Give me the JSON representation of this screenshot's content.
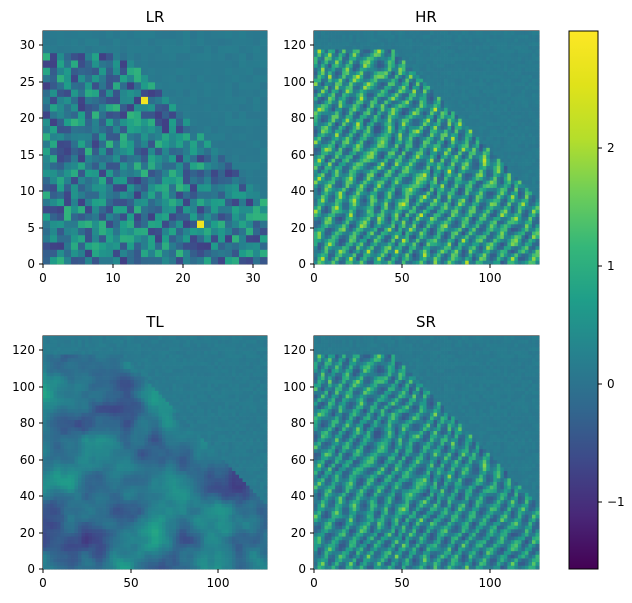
{
  "figure": {
    "panel_titles": [
      "LR",
      "HR",
      "TL",
      "SR"
    ],
    "panel_axes": {
      "LR": {
        "x_ticks": [
          "0",
          "10",
          "20",
          "30"
        ],
        "y_ticks": [
          "0",
          "5",
          "10",
          "15",
          "20",
          "25",
          "30"
        ]
      },
      "HR": {
        "x_ticks": [
          "0",
          "50",
          "100"
        ],
        "y_ticks": [
          "0",
          "20",
          "40",
          "60",
          "80",
          "100",
          "120"
        ]
      },
      "TL": {
        "x_ticks": [
          "0",
          "50",
          "100"
        ],
        "y_ticks": [
          "0",
          "20",
          "40",
          "60",
          "80",
          "100",
          "120"
        ]
      },
      "SR": {
        "x_ticks": [
          "0",
          "50",
          "100"
        ],
        "y_ticks": [
          "0",
          "20",
          "40",
          "60",
          "80",
          "100",
          "120"
        ]
      }
    },
    "colorbar": {
      "tick_labels": [
        "2",
        "1",
        "0",
        "−1"
      ]
    }
  },
  "chart_data": [
    {
      "type": "heatmap",
      "title": "LR",
      "colormap": "viridis",
      "xlim": [
        0,
        32
      ],
      "ylim": [
        0,
        32
      ],
      "x_ticks": [
        0,
        10,
        20,
        30
      ],
      "y_ticks": [
        0,
        5,
        10,
        15,
        20,
        25,
        30
      ],
      "grid_size": [
        32,
        32
      ]
    },
    {
      "type": "heatmap",
      "title": "HR",
      "colormap": "viridis",
      "xlim": [
        0,
        128
      ],
      "ylim": [
        0,
        128
      ],
      "x_ticks": [
        0,
        50,
        100
      ],
      "y_ticks": [
        0,
        20,
        40,
        60,
        80,
        100,
        120
      ],
      "grid_size": [
        128,
        128
      ]
    },
    {
      "type": "heatmap",
      "title": "TL",
      "colormap": "viridis",
      "xlim": [
        0,
        128
      ],
      "ylim": [
        0,
        128
      ],
      "x_ticks": [
        0,
        50,
        100
      ],
      "y_ticks": [
        0,
        20,
        40,
        60,
        80,
        100,
        120
      ],
      "grid_size": [
        128,
        128
      ]
    },
    {
      "type": "heatmap",
      "title": "SR",
      "colormap": "viridis",
      "xlim": [
        0,
        128
      ],
      "ylim": [
        0,
        128
      ],
      "x_ticks": [
        0,
        50,
        100
      ],
      "y_ticks": [
        0,
        20,
        40,
        60,
        80,
        100,
        120
      ],
      "grid_size": [
        128,
        128
      ]
    }
  ],
  "colorbar": {
    "colormap": "viridis",
    "range": [
      -1.6,
      3.0
    ],
    "ticks": [
      2,
      1,
      0,
      -1
    ]
  }
}
